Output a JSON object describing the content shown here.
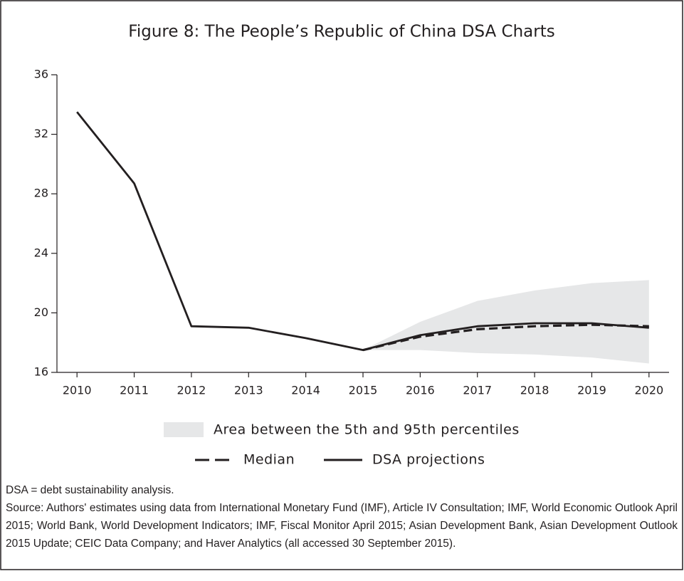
{
  "chart_data": {
    "type": "line",
    "title": "Figure 8: The People’s Republic of China DSA Charts",
    "categories": [
      "2010",
      "2011",
      "2012",
      "2013",
      "2014",
      "2015",
      "2016",
      "2017",
      "2018",
      "2019",
      "2020"
    ],
    "ylim": [
      16,
      36
    ],
    "yticks": [
      16,
      20,
      24,
      28,
      32,
      36
    ],
    "band": {
      "name": "Area between the 5th and 95th percentiles",
      "color": "#e6e7e8",
      "upper": [
        null,
        null,
        null,
        null,
        null,
        17.5,
        19.4,
        20.8,
        21.5,
        22.0,
        22.2
      ],
      "lower": [
        null,
        null,
        null,
        null,
        null,
        17.5,
        17.5,
        17.3,
        17.2,
        17.0,
        16.6
      ]
    },
    "series": [
      {
        "name": "Median",
        "color": "#231f20",
        "style": "dashed",
        "values": [
          null,
          null,
          null,
          null,
          null,
          17.5,
          18.4,
          18.9,
          19.1,
          19.2,
          19.1
        ]
      },
      {
        "name": "DSA projections",
        "color": "#231f20",
        "style": "solid",
        "values": [
          33.5,
          28.7,
          19.1,
          19.0,
          18.3,
          17.5,
          18.5,
          19.1,
          19.3,
          19.3,
          19.0
        ]
      }
    ],
    "notes": [
      "DSA = debt sustainability analysis.",
      "Source: Authors' estimates using data from International Monetary Fund (IMF),  Article IV Consultation; IMF, World Economic Outlook April 2015; World Bank, World Development Indicators; IMF, Fiscal Monitor April 2015;  Asian Development Bank, Asian Development Outlook 2015 Update; CEIC Data Company; and Haver Analytics (all accessed 30 September 2015)."
    ]
  }
}
